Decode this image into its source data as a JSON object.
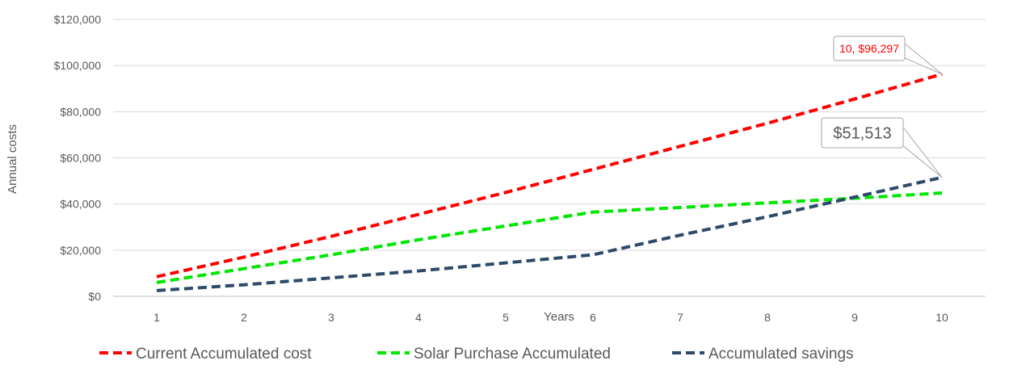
{
  "chart_data": {
    "type": "line",
    "title": "",
    "xlabel": "Years",
    "ylabel": "Annual costs",
    "x": [
      1,
      2,
      3,
      4,
      5,
      6,
      7,
      8,
      9,
      10
    ],
    "ylim": [
      0,
      120000
    ],
    "yticks": [
      0,
      20000,
      40000,
      60000,
      80000,
      100000,
      120000
    ],
    "ytick_labels": [
      "$0",
      "$20,000",
      "$40,000",
      "$60,000",
      "$80,000",
      "$100,000",
      "$120,000"
    ],
    "grid": "horizontal",
    "legend_position": "bottom",
    "series": [
      {
        "name": "Current Accumulated cost",
        "color": "#FF0000",
        "style": "dashed",
        "values": [
          8500,
          17000,
          26000,
          35500,
          45000,
          55000,
          65000,
          75000,
          85500,
          96297
        ]
      },
      {
        "name": "Solar Purchase Accumulated",
        "color": "#00E600",
        "style": "dashed",
        "values": [
          6000,
          12000,
          18000,
          24500,
          30500,
          36500,
          38500,
          40500,
          42500,
          44784
        ]
      },
      {
        "name": "Accumulated savings",
        "color": "#2E4A6B",
        "style": "dashed",
        "values": [
          2500,
          5000,
          8000,
          11000,
          14500,
          18000,
          26500,
          34500,
          43000,
          51513
        ]
      }
    ],
    "annotations": [
      {
        "text": "10, $96,297",
        "series": 0,
        "point_index": 9,
        "color": "#FF0000"
      },
      {
        "text": "$51,513",
        "series": 2,
        "point_index": 9,
        "color": "#595959"
      }
    ]
  }
}
